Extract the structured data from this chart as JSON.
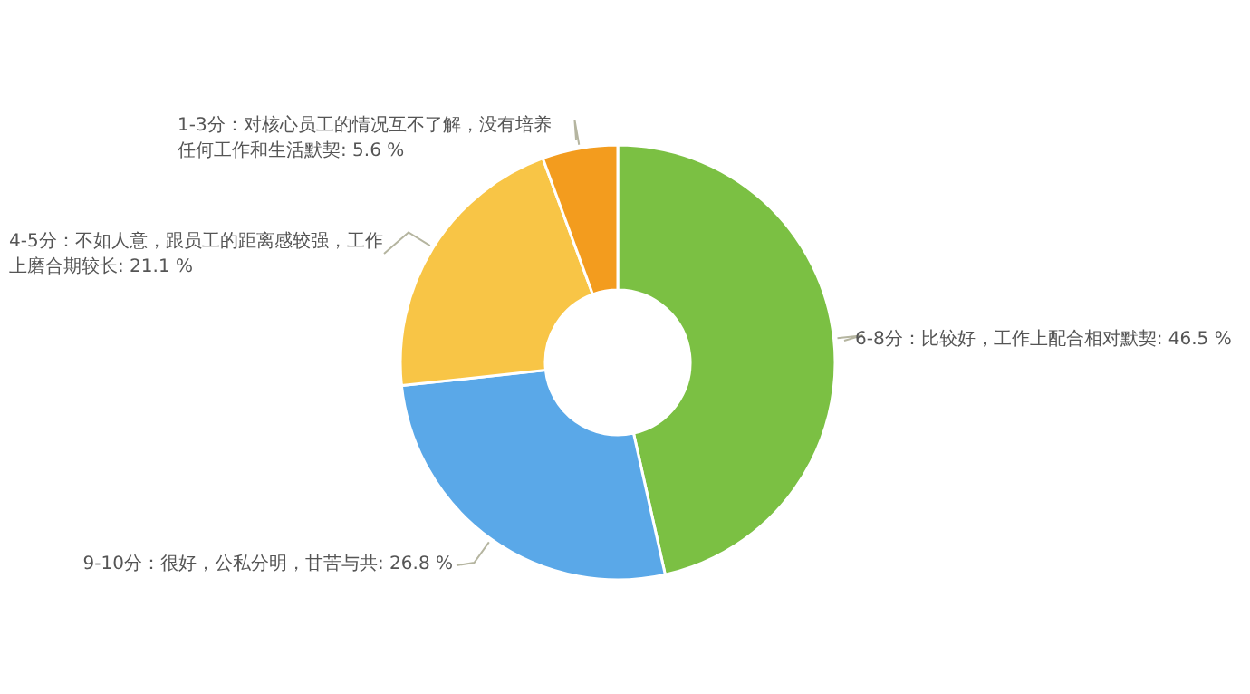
{
  "chart_data": {
    "type": "donut",
    "categories": [
      "6-8分：比较好，工作上配合相对默契",
      "9-10分：很好，公私分明，甘苦与共",
      "4-5分：不如人意，跟员工的距离感较强，工作上磨合期较长",
      "1-3分：对核心员工的情况互不了解，没有培养任何工作和生活默契"
    ],
    "values": [
      46.5,
      26.8,
      21.1,
      5.6
    ],
    "value_labels": [
      "46.5 %",
      "26.8 %",
      "21.1 %",
      "5.6 %"
    ],
    "colors": [
      "#7bc043",
      "#5aa8e8",
      "#f8c546",
      "#f39c1e"
    ]
  }
}
